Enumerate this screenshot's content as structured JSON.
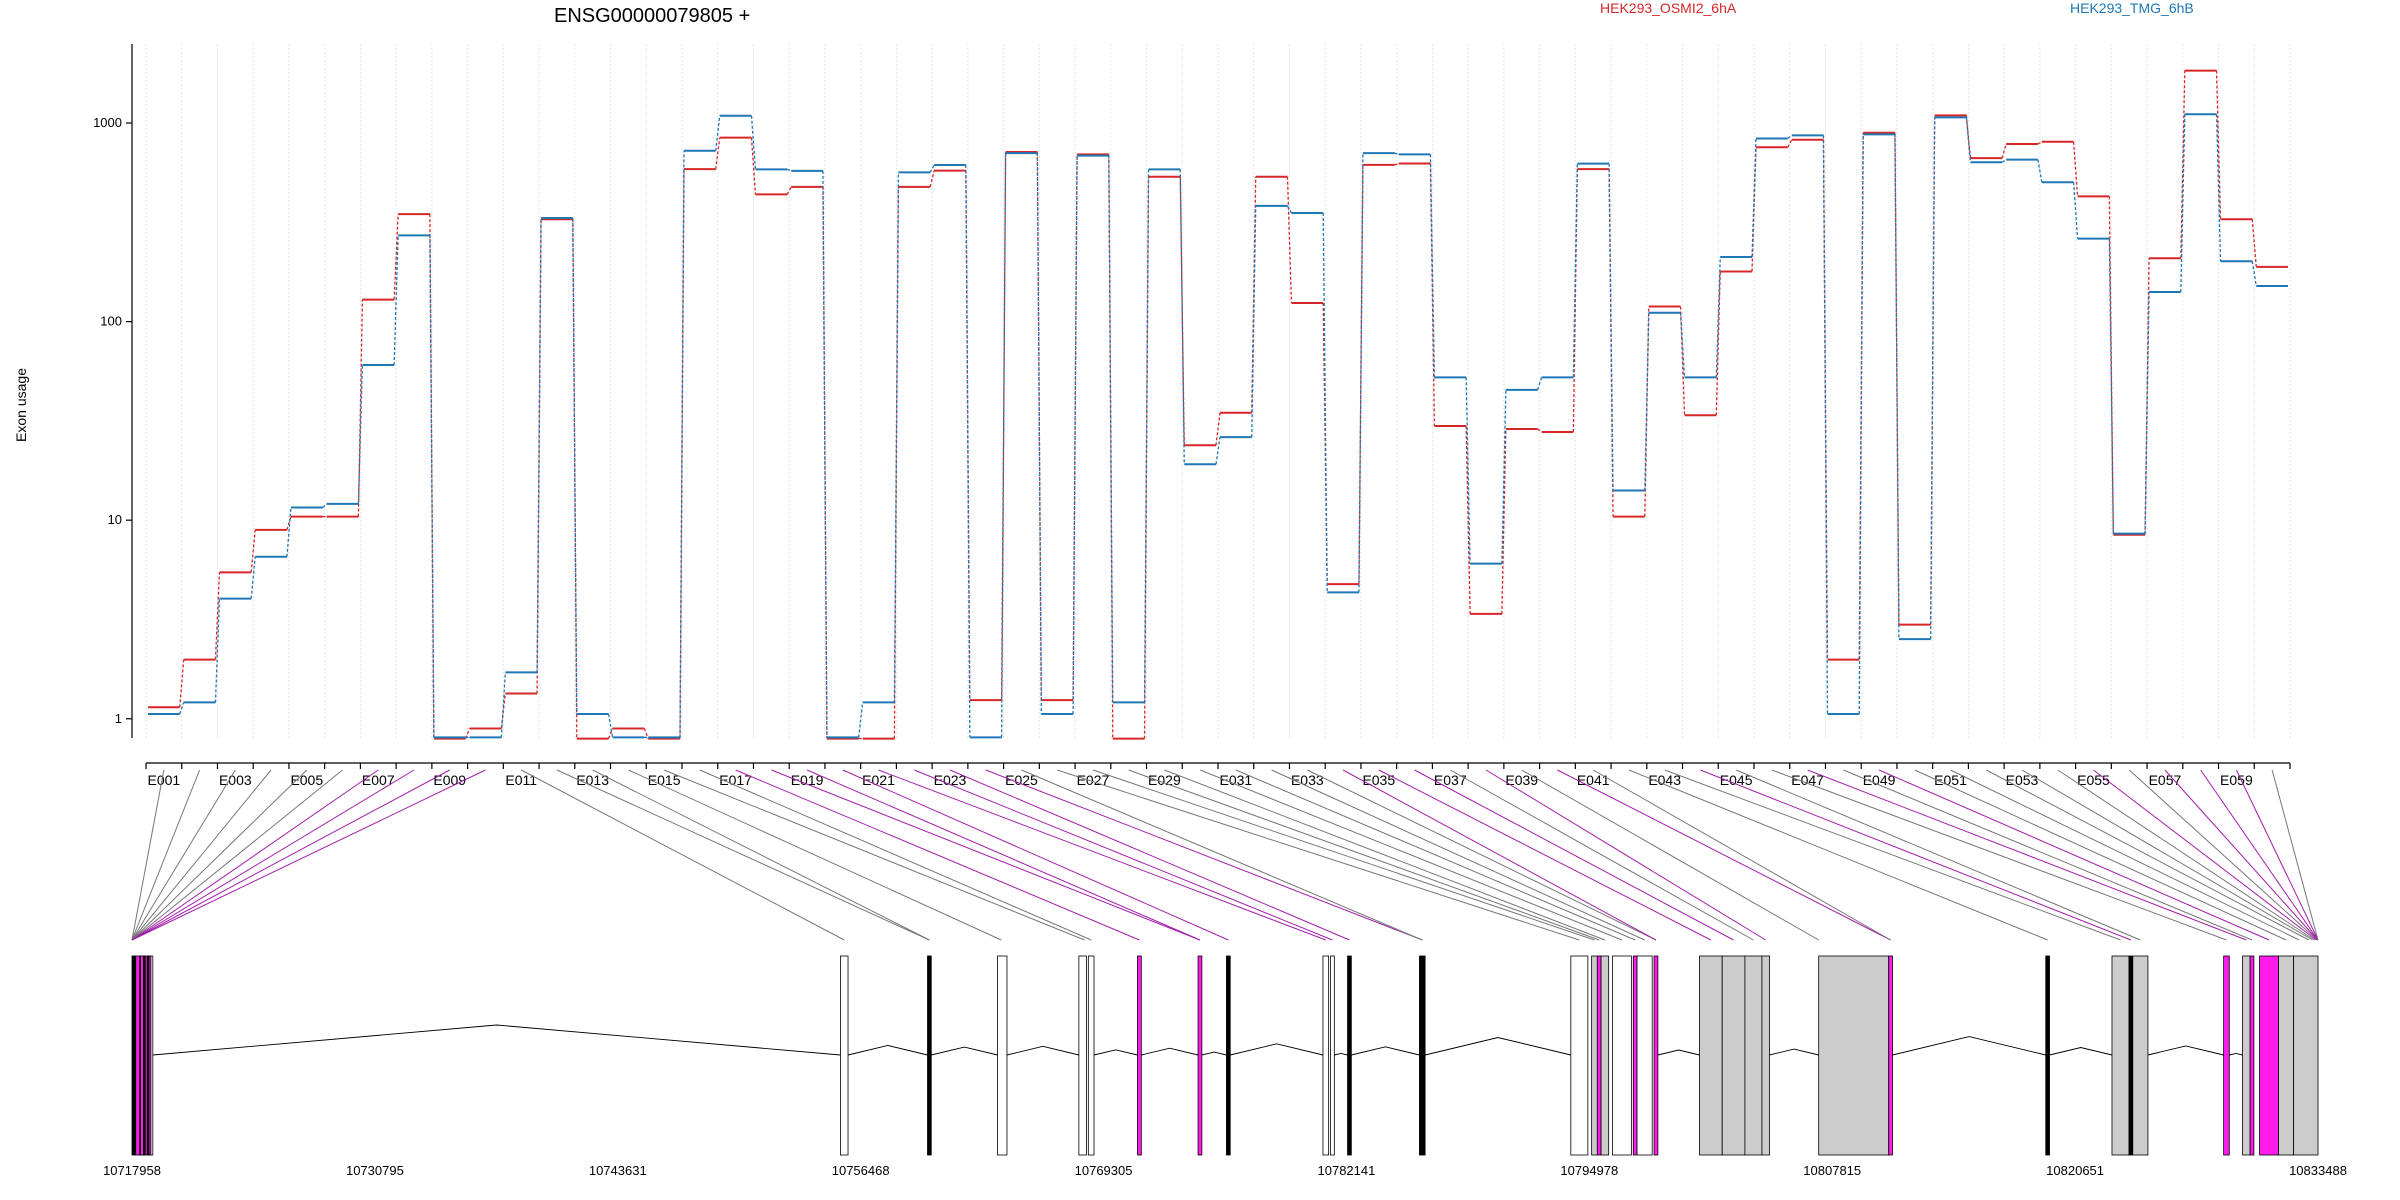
{
  "chart_data": {
    "type": "line",
    "title": "ENSG00000079805 +",
    "ylabel": "Exon usage",
    "y_scale": "log",
    "ylim": [
      0.8,
      2500
    ],
    "y_ticks": [
      1,
      10,
      100,
      1000
    ],
    "y_tick_labels": [
      "1",
      "10",
      "100",
      "1000"
    ],
    "grid": "vertical-dotted",
    "legend": [
      "top",
      "top-right"
    ],
    "categories": [
      "E001",
      "E002",
      "E003",
      "E004",
      "E005",
      "E006",
      "E007",
      "E008",
      "E009",
      "E010",
      "E011",
      "E012",
      "E013",
      "E014",
      "E015",
      "E016",
      "E017",
      "E018",
      "E019",
      "E020",
      "E021",
      "E022",
      "E023",
      "E024",
      "E025",
      "E026",
      "E027",
      "E028",
      "E029",
      "E030",
      "E031",
      "E032",
      "E033",
      "E034",
      "E035",
      "E036",
      "E037",
      "E038",
      "E039",
      "E040",
      "E041",
      "E042",
      "E043",
      "E044",
      "E045",
      "E046",
      "E047",
      "E048",
      "E049",
      "E050",
      "E051",
      "E052",
      "E053",
      "E054",
      "E055",
      "E056",
      "E057",
      "E058",
      "E059",
      "E060"
    ],
    "tick_label_every": 2,
    "series": [
      {
        "name": "HEK293_OSMI2_6hA",
        "color": "#d62728",
        "values": [
          1.15,
          2.0,
          5.5,
          9.0,
          10.5,
          10.5,
          130,
          350,
          0.8,
          0.9,
          1.35,
          330,
          0.8,
          0.9,
          0.8,
          590,
          850,
          440,
          480,
          0.8,
          0.8,
          480,
          580,
          1.25,
          720,
          1.25,
          700,
          0.8,
          540,
          24,
          35,
          540,
          125,
          4.8,
          620,
          630,
          30,
          3.4,
          29,
          28,
          590,
          10.5,
          120,
          34,
          180,
          760,
          830,
          2.0,
          900,
          3.0,
          1100,
          670,
          790,
          810,
          430,
          8.5,
          210,
          1850,
          330,
          190
        ]
      },
      {
        "name": "HEK293_TMG_6hB",
        "color": "#1f77b4",
        "values": [
          1.05,
          1.2,
          4.0,
          6.5,
          11.5,
          12.0,
          60,
          270,
          0.8,
          0.8,
          1.7,
          330,
          1.05,
          0.8,
          0.8,
          720,
          1080,
          580,
          570,
          0.8,
          1.2,
          560,
          610,
          0.8,
          700,
          1.05,
          680,
          1.2,
          580,
          19,
          26,
          380,
          350,
          4.3,
          700,
          690,
          52,
          6.0,
          45,
          52,
          620,
          14,
          110,
          52,
          210,
          830,
          860,
          1.05,
          870,
          2.5,
          1060,
          630,
          650,
          500,
          260,
          8.5,
          140,
          1100,
          200,
          150
        ]
      }
    ],
    "xlim": [
      10717958,
      10833488
    ],
    "x_ticks": [
      10717958,
      10730795,
      10743631,
      10756468,
      10769305,
      10782141,
      10794978,
      10807815,
      10820651,
      10833488
    ],
    "x_tick_labels": [
      "10717958",
      "10730795",
      "10743631",
      "10756468",
      "10769305",
      "10782141",
      "10794978",
      "10807815",
      "10820651",
      "10833488"
    ],
    "exon_groups": [
      {
        "start": 10717958,
        "end": 10718158,
        "color": "#000000"
      },
      {
        "start": 10718158,
        "end": 10718408,
        "color": "#ff1cea"
      },
      {
        "start": 10718408,
        "end": 10718658,
        "color": "#ff1cea"
      },
      {
        "start": 10718658,
        "end": 10718858,
        "color": "#ff1cea"
      },
      {
        "start": 10718858,
        "end": 10718958,
        "color": "#ff1cea"
      },
      {
        "start": 10718958,
        "end": 10719058,
        "color": "#ffffff"
      },
      {
        "start": 10718358,
        "end": 10718458,
        "color": "#000000"
      },
      {
        "start": 10718558,
        "end": 10718658,
        "color": "#000000"
      },
      {
        "start": 10718758,
        "end": 10718858,
        "color": "#000000"
      },
      {
        "start": 10755400,
        "end": 10755800,
        "color": "#ffffff"
      },
      {
        "start": 10760000,
        "end": 10760200,
        "color": "#000000"
      },
      {
        "start": 10763700,
        "end": 10764200,
        "color": "#ffffff"
      },
      {
        "start": 10768000,
        "end": 10768400,
        "color": "#ffffff"
      },
      {
        "start": 10768500,
        "end": 10768800,
        "color": "#ffffff"
      },
      {
        "start": 10771100,
        "end": 10771300,
        "color": "#ff1cea"
      },
      {
        "start": 10774300,
        "end": 10774500,
        "color": "#ff1cea"
      },
      {
        "start": 10775800,
        "end": 10776000,
        "color": "#000000"
      },
      {
        "start": 10780900,
        "end": 10781200,
        "color": "#ffffff"
      },
      {
        "start": 10781300,
        "end": 10781500,
        "color": "#ffffff"
      },
      {
        "start": 10782200,
        "end": 10782400,
        "color": "#000000"
      },
      {
        "start": 10786000,
        "end": 10786300,
        "color": "#000000"
      },
      {
        "start": 10794000,
        "end": 10794900,
        "color": "#ffffff"
      },
      {
        "start": 10795100,
        "end": 10795400,
        "color": "#cccccc"
      },
      {
        "start": 10795400,
        "end": 10795600,
        "color": "#ff1cea"
      },
      {
        "start": 10795600,
        "end": 10796000,
        "color": "#cccccc"
      },
      {
        "start": 10796200,
        "end": 10797200,
        "color": "#ffffff"
      },
      {
        "start": 10797300,
        "end": 10797500,
        "color": "#ff1cea"
      },
      {
        "start": 10797500,
        "end": 10798300,
        "color": "#ffffff"
      },
      {
        "start": 10798400,
        "end": 10798600,
        "color": "#ff1cea"
      },
      {
        "start": 10800800,
        "end": 10802000,
        "color": "#cccccc"
      },
      {
        "start": 10802000,
        "end": 10803200,
        "color": "#cccccc"
      },
      {
        "start": 10803200,
        "end": 10804100,
        "color": "#cccccc"
      },
      {
        "start": 10804100,
        "end": 10804500,
        "color": "#cccccc"
      },
      {
        "start": 10807100,
        "end": 10810800,
        "color": "#cccccc"
      },
      {
        "start": 10810800,
        "end": 10811000,
        "color": "#ff1cea"
      },
      {
        "start": 10819100,
        "end": 10819300,
        "color": "#000000"
      },
      {
        "start": 10822600,
        "end": 10823500,
        "color": "#cccccc"
      },
      {
        "start": 10823500,
        "end": 10823700,
        "color": "#000000"
      },
      {
        "start": 10823700,
        "end": 10824500,
        "color": "#cccccc"
      },
      {
        "start": 10828500,
        "end": 10828800,
        "color": "#ff1cea"
      },
      {
        "start": 10829500,
        "end": 10829900,
        "color": "#cccccc"
      },
      {
        "start": 10829900,
        "end": 10830100,
        "color": "#ff1cea"
      },
      {
        "start": 10830400,
        "end": 10831400,
        "color": "#ff1cea"
      },
      {
        "start": 10831400,
        "end": 10832200,
        "color": "#cccccc"
      },
      {
        "start": 10832200,
        "end": 10833488,
        "color": "#cccccc"
      }
    ],
    "exon_connector_targets": [
      10717958,
      10717958,
      10717958,
      10717958,
      10717958,
      10717958,
      10717958,
      10717958,
      10717958,
      10717958,
      10755600,
      10760100,
      10760100,
      10763900,
      10768300,
      10768650,
      10771200,
      10774400,
      10774400,
      10775900,
      10781050,
      10781400,
      10782300,
      10786150,
      10786150,
      10794450,
      10795250,
      10795500,
      10795800,
      10796700,
      10797400,
      10797900,
      10798500,
      10798500,
      10801400,
      10802600,
      10803650,
      10804300,
      10807100,
      10810900,
      10810900,
      10819200,
      10823050,
      10823600,
      10824100,
      10828650,
      10829700,
      10830000,
      10830900,
      10831800,
      10832500,
      10833000,
      10833200,
      10833300,
      10833400,
      10833450,
      10833470,
      10833480,
      10833488,
      10833488
    ],
    "highlight_exons": [
      "E007",
      "E008",
      "E009",
      "E010",
      "E017",
      "E018",
      "E019",
      "E020",
      "E021",
      "E022",
      "E023",
      "E024",
      "E034",
      "E035",
      "E036",
      "E038",
      "E040",
      "E044",
      "E047",
      "E049",
      "E055",
      "E057",
      "E058",
      "E059"
    ]
  }
}
